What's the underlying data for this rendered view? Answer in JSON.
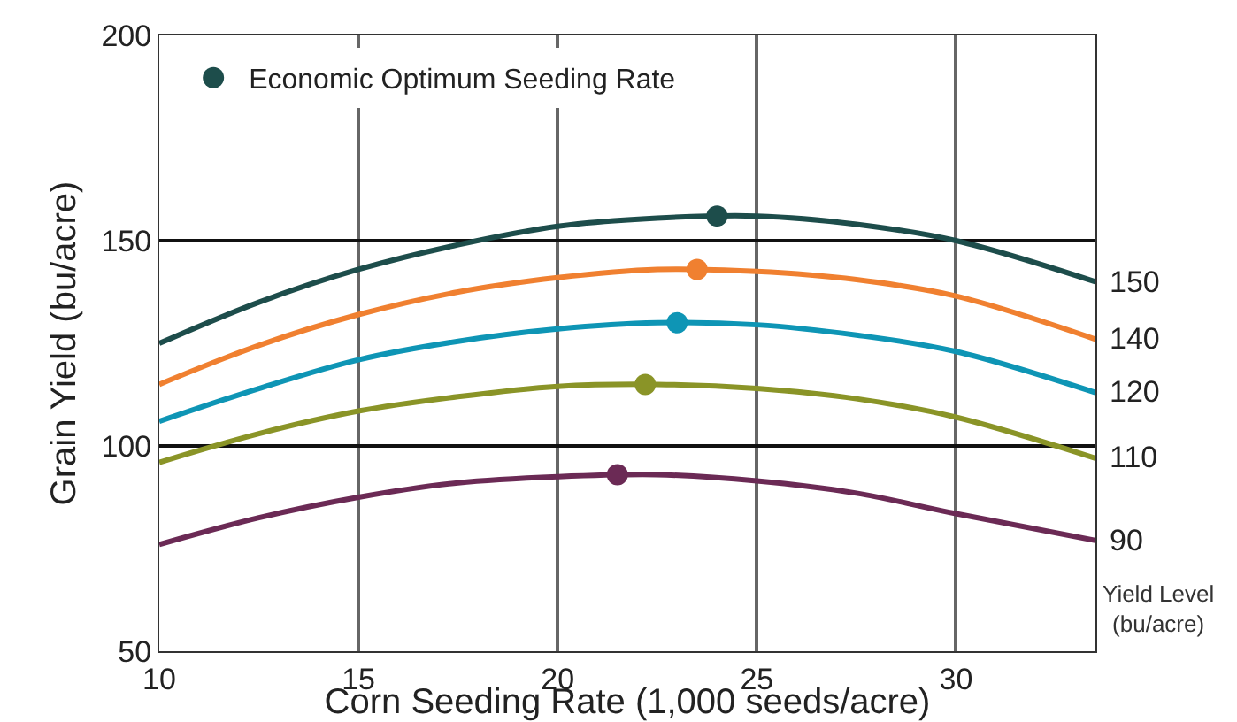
{
  "chart_data": {
    "type": "line",
    "xlabel": "Corn Seeding Rate (1,000 seeds/acre)",
    "ylabel": "Grain Yield (bu/acre)",
    "x": [
      10,
      12.5,
      15,
      17.5,
      20,
      22.5,
      25,
      27.5,
      30,
      33.5
    ],
    "xlim": [
      10,
      33.5
    ],
    "xticks": [
      10,
      15,
      20,
      25,
      30
    ],
    "ylim": [
      50,
      200
    ],
    "yticks": [
      50,
      100,
      150,
      200
    ],
    "grid": true,
    "legend": "top left",
    "marker": "none",
    "line_style": "solid",
    "series": [
      {
        "name": "150",
        "color": "#1d4d4b",
        "values": [
          125,
          135,
          143,
          149,
          153.5,
          155.5,
          156,
          154,
          150,
          140
        ]
      },
      {
        "name": "140",
        "color": "#f08030",
        "values": [
          115,
          124.5,
          132,
          137.5,
          141,
          143,
          142.5,
          140.5,
          136.5,
          126
        ]
      },
      {
        "name": "120",
        "color": "#0e95b5",
        "values": [
          106,
          114,
          121,
          125.5,
          128.5,
          130,
          129.5,
          127,
          123,
          113
        ]
      },
      {
        "name": "110",
        "color": "#8a9427",
        "values": [
          96,
          103,
          108.5,
          112,
          114.5,
          115,
          114,
          111.5,
          107,
          97
        ]
      },
      {
        "name": "90",
        "color": "#6b2a55",
        "values": [
          76,
          82.5,
          87.5,
          91,
          92.5,
          93,
          91.5,
          88.5,
          83.5,
          77
        ]
      },
      {
        "name": "Economic Optimum Seeding Rate",
        "type": "scatter",
        "marker": "circle",
        "colors": [
          "#1d4d4b",
          "#f08030",
          "#0e95b5",
          "#8a9427",
          "#6b2a55"
        ],
        "x": [
          24,
          23.5,
          23,
          22.2,
          21.5
        ],
        "values": [
          156,
          143,
          130,
          115,
          93
        ]
      }
    ],
    "annotations": [
      "Yield Level\n(bu/acre)"
    ]
  }
}
